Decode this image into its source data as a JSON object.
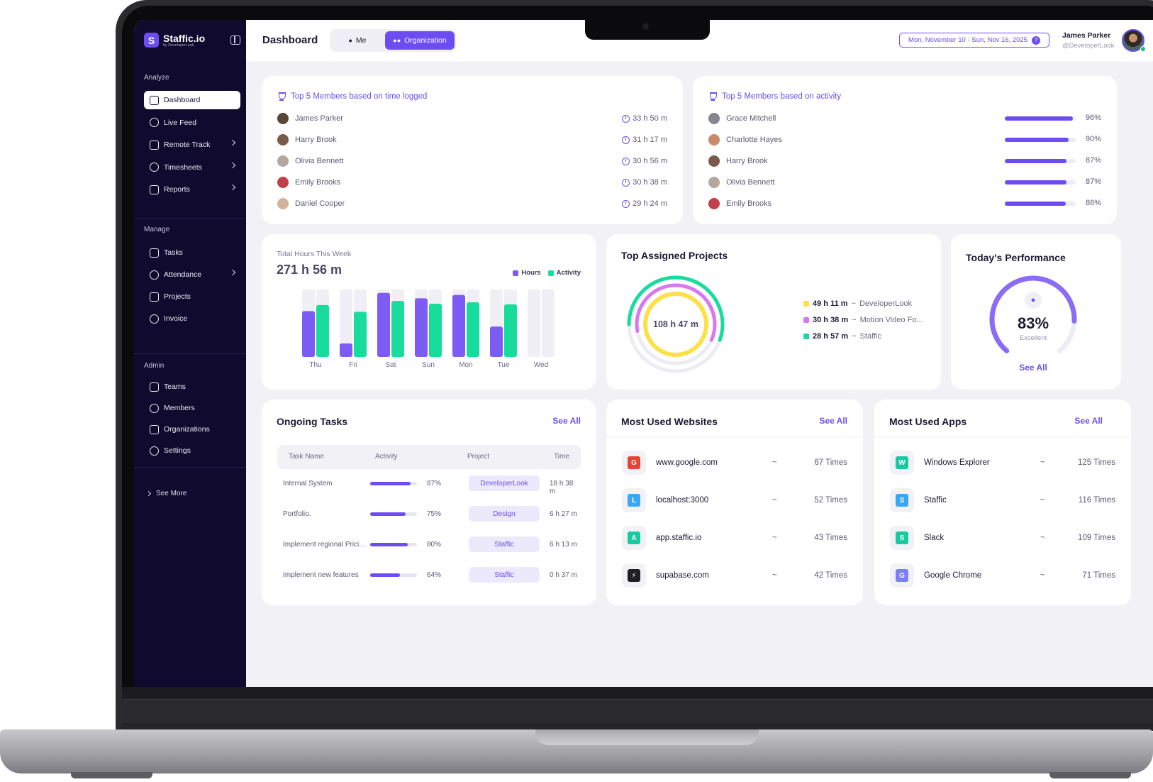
{
  "colors": {
    "accent": "#6d4df2",
    "green": "#17dc9c",
    "yellow": "#fbe048",
    "pink": "#d977f0",
    "sidebar_bg": "#0f0a2e",
    "page_bg": "#f2f2f6"
  },
  "app": {
    "logo_name": "Staffic.io",
    "logo_sub": "by DeveloperLook",
    "logo_mark": "S"
  },
  "sidebar": {
    "analyze_label": "Analyze",
    "manage_label": "Manage",
    "admin_label": "Admin",
    "analyze_items": [
      {
        "label": "Dashboard",
        "icon": "grid-icon",
        "active": true
      },
      {
        "label": "Live Feed",
        "icon": "live-icon"
      },
      {
        "label": "Remote Track",
        "icon": "monitor-icon",
        "chevron": true
      },
      {
        "label": "Timesheets",
        "icon": "calendar-icon",
        "chevron": true
      },
      {
        "label": "Reports",
        "icon": "report-icon",
        "chevron": true
      }
    ],
    "manage_items": [
      {
        "label": "Tasks",
        "icon": "tasks-icon"
      },
      {
        "label": "Attendance",
        "icon": "attendance-icon",
        "chevron": true
      },
      {
        "label": "Projects",
        "icon": "folder-icon"
      },
      {
        "label": "Invoice",
        "icon": "invoice-icon"
      }
    ],
    "admin_items": [
      {
        "label": "Teams",
        "icon": "teams-icon"
      },
      {
        "label": "Members",
        "icon": "members-icon"
      },
      {
        "label": "Organizations",
        "icon": "org-icon"
      },
      {
        "label": "Settings",
        "icon": "gear-icon"
      }
    ],
    "see_more": "See More"
  },
  "header": {
    "title": "Dashboard",
    "seg_me": "Me",
    "seg_org": "Organization",
    "date_range": "Mon, November 10 - Sun, Nov 16, 2025",
    "help": "?",
    "user_name": "James Parker",
    "user_handle": "@DeveloperLook"
  },
  "top_time": {
    "title": "Top 5 Members based on time logged",
    "members": [
      {
        "name": "James Parker",
        "time": "33 h 50 m",
        "color": "#5a4636"
      },
      {
        "name": "Harry Brook",
        "time": "31 h 17 m",
        "color": "#7a5a48"
      },
      {
        "name": "Olivia Bennett",
        "time": "30 h 56 m",
        "color": "#b6a6a0"
      },
      {
        "name": "Emily Brooks",
        "time": "30 h 38 m",
        "color": "#c2404a"
      },
      {
        "name": "Daniel Cooper",
        "time": "29 h 24 m",
        "color": "#d2b49c"
      }
    ]
  },
  "top_activity": {
    "title": "Top 5 Members based on activity",
    "members": [
      {
        "name": "Grace Mitchell",
        "pct": "96%",
        "value": 96,
        "color": "#8a8490"
      },
      {
        "name": "Charlotte Hayes",
        "pct": "90%",
        "value": 90,
        "color": "#c98a6a"
      },
      {
        "name": "Harry Brook",
        "pct": "87%",
        "value": 87,
        "color": "#7a5a48"
      },
      {
        "name": "Olivia Bennett",
        "pct": "87%",
        "value": 87,
        "color": "#b6a6a0"
      },
      {
        "name": "Emily Brooks",
        "pct": "86%",
        "value": 86,
        "color": "#c2404a"
      }
    ]
  },
  "total_hours": {
    "label": "Total Hours This Week",
    "value": "271 h 56 m",
    "legend_hours": "Hours",
    "legend_activity": "Activity"
  },
  "chart_data": {
    "type": "bar",
    "categories": [
      "Thu",
      "Fri",
      "Sat",
      "Sun",
      "Mon",
      "Tue",
      "Wed"
    ],
    "series": [
      {
        "name": "Hours",
        "color": "#7d5bf5",
        "values": [
          68,
          20,
          95,
          87,
          92,
          45,
          0
        ]
      },
      {
        "name": "Activity",
        "color": "#17dc9c",
        "values": [
          77,
          67,
          83,
          79,
          81,
          78,
          0
        ]
      }
    ],
    "ylim": [
      0,
      100
    ],
    "grid": false,
    "legend": "top-right"
  },
  "projects": {
    "title": "Top Assigned Projects",
    "center": "108 h 47 m",
    "items": [
      {
        "time": "49 h 11 m",
        "sep": "~",
        "name": "DeveloperLook",
        "color": "#fbe048"
      },
      {
        "time": "30 h 38 m",
        "sep": "~",
        "name": "Motion Video Fo...",
        "color": "#d977f0"
      },
      {
        "time": "28 h 57 m",
        "sep": "~",
        "name": "Staffic",
        "color": "#17dc9c"
      }
    ]
  },
  "performance": {
    "title": "Today's Performance",
    "value": "83%",
    "fraction": 0.83,
    "label": "Excellent",
    "see_all": "See All"
  },
  "tasks": {
    "title": "Ongoing Tasks",
    "see_all": "See All",
    "columns": [
      "Task Name",
      "Activity",
      "Project",
      "Time"
    ],
    "rows": [
      {
        "name": "Internal System",
        "pct": "87%",
        "value": 87,
        "project": "DeveloperLook",
        "time": "18 h 38 m"
      },
      {
        "name": "Portfolio.",
        "pct": "75%",
        "value": 75,
        "project": "Design",
        "time": "6 h 27 m"
      },
      {
        "name": "Implement regional Prici...",
        "pct": "80%",
        "value": 80,
        "project": "Staffic",
        "time": "6 h 13 m"
      },
      {
        "name": "Implement new features",
        "pct": "64%",
        "value": 64,
        "project": "Staffic",
        "time": "0 h 37 m"
      }
    ]
  },
  "websites": {
    "title": "Most Used Websites",
    "see_all": "See All",
    "items": [
      {
        "name": "www.google.com",
        "sep": "~",
        "count": "67 Times",
        "mark": "G",
        "color": "#ea4335",
        "icon": "google-icon"
      },
      {
        "name": "localhost:3000",
        "sep": "~",
        "count": "52 Times",
        "mark": "L",
        "color": "#3aa7f2",
        "icon": "localhost-icon"
      },
      {
        "name": "app.staffic.io",
        "sep": "~",
        "count": "43 Times",
        "mark": "A",
        "color": "#19c9a0",
        "icon": "staffic-icon"
      },
      {
        "name": "supabase.com",
        "sep": "~",
        "count": "42 Times",
        "mark": "⚡",
        "color": "#1f1f24",
        "icon": "supabase-icon"
      }
    ]
  },
  "apps": {
    "title": "Most Used Apps",
    "see_all": "See All",
    "items": [
      {
        "name": "Windows Explorer",
        "sep": "~",
        "count": "125 Times",
        "mark": "W",
        "color": "#19c9a0",
        "icon": "explorer-icon"
      },
      {
        "name": "Staffic",
        "sep": "~",
        "count": "116 Times",
        "mark": "S",
        "color": "#3aa7f2",
        "icon": "staffic-app-icon"
      },
      {
        "name": "Slack",
        "sep": "~",
        "count": "109 Times",
        "mark": "S",
        "color": "#19c9a0",
        "icon": "slack-icon"
      },
      {
        "name": "Google Chrome",
        "sep": "~",
        "count": "71 Times",
        "mark": "G",
        "color": "#7b7ff0",
        "icon": "chrome-icon"
      }
    ]
  }
}
